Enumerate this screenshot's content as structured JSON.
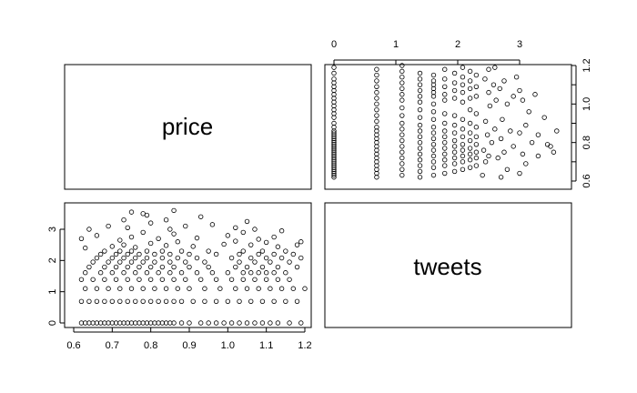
{
  "chart_data": {
    "type": "scatter",
    "variables": [
      "price",
      "tweets"
    ],
    "price_ticks": [
      0.6,
      0.7,
      0.8,
      0.9,
      1.0,
      1.1,
      1.2
    ],
    "price_tick_labels": [
      "0.6",
      "0.7",
      "0.8",
      "0.9",
      "1.0",
      "1.1",
      "1.2"
    ],
    "price_range": [
      0.6,
      1.2
    ],
    "tweets_ticks": [
      0,
      1,
      2,
      3
    ],
    "tweets_tick_labels": [
      "0",
      "1",
      "2",
      "3"
    ],
    "tweets_range": [
      0,
      3.7
    ],
    "tweets_levels": [
      0,
      0.69,
      1.1,
      1.39,
      1.61,
      1.79,
      1.95,
      2.08,
      2.2,
      2.3
    ],
    "points_note": "",
    "points": [
      [
        0.62,
        0
      ],
      [
        0.63,
        0
      ],
      [
        0.64,
        0
      ],
      [
        0.65,
        0
      ],
      [
        0.66,
        0
      ],
      [
        0.67,
        0
      ],
      [
        0.68,
        0
      ],
      [
        0.69,
        0
      ],
      [
        0.7,
        0
      ],
      [
        0.71,
        0
      ],
      [
        0.72,
        0
      ],
      [
        0.73,
        0
      ],
      [
        0.74,
        0
      ],
      [
        0.75,
        0
      ],
      [
        0.76,
        0
      ],
      [
        0.77,
        0
      ],
      [
        0.78,
        0
      ],
      [
        0.79,
        0
      ],
      [
        0.8,
        0
      ],
      [
        0.81,
        0
      ],
      [
        0.82,
        0
      ],
      [
        0.83,
        0
      ],
      [
        0.84,
        0
      ],
      [
        0.85,
        0
      ],
      [
        0.86,
        0
      ],
      [
        0.88,
        0
      ],
      [
        0.9,
        0
      ],
      [
        0.93,
        0
      ],
      [
        0.95,
        0
      ],
      [
        0.97,
        0
      ],
      [
        0.99,
        0
      ],
      [
        1.01,
        0
      ],
      [
        1.03,
        0
      ],
      [
        1.05,
        0
      ],
      [
        1.07,
        0
      ],
      [
        1.09,
        0
      ],
      [
        1.11,
        0
      ],
      [
        1.13,
        0
      ],
      [
        1.16,
        0
      ],
      [
        1.19,
        0
      ],
      [
        0.62,
        0.69
      ],
      [
        0.64,
        0.69
      ],
      [
        0.66,
        0.69
      ],
      [
        0.68,
        0.69
      ],
      [
        0.7,
        0.69
      ],
      [
        0.72,
        0.69
      ],
      [
        0.74,
        0.69
      ],
      [
        0.76,
        0.69
      ],
      [
        0.78,
        0.69
      ],
      [
        0.8,
        0.69
      ],
      [
        0.82,
        0.69
      ],
      [
        0.84,
        0.69
      ],
      [
        0.86,
        0.69
      ],
      [
        0.88,
        0.69
      ],
      [
        0.91,
        0.69
      ],
      [
        0.94,
        0.69
      ],
      [
        0.97,
        0.69
      ],
      [
        1.0,
        0.69
      ],
      [
        1.03,
        0.69
      ],
      [
        1.06,
        0.69
      ],
      [
        1.09,
        0.69
      ],
      [
        1.12,
        0.69
      ],
      [
        1.15,
        0.69
      ],
      [
        1.18,
        0.69
      ],
      [
        0.63,
        1.1
      ],
      [
        0.66,
        1.1
      ],
      [
        0.69,
        1.1
      ],
      [
        0.72,
        1.1
      ],
      [
        0.75,
        1.1
      ],
      [
        0.78,
        1.1
      ],
      [
        0.81,
        1.1
      ],
      [
        0.84,
        1.1
      ],
      [
        0.87,
        1.1
      ],
      [
        0.9,
        1.1
      ],
      [
        0.94,
        1.1
      ],
      [
        0.98,
        1.1
      ],
      [
        1.02,
        1.1
      ],
      [
        1.05,
        1.1
      ],
      [
        1.08,
        1.1
      ],
      [
        1.11,
        1.1
      ],
      [
        1.14,
        1.1
      ],
      [
        1.17,
        1.1
      ],
      [
        1.2,
        1.1
      ],
      [
        0.62,
        1.39
      ],
      [
        0.65,
        1.39
      ],
      [
        0.68,
        1.39
      ],
      [
        0.71,
        1.39
      ],
      [
        0.74,
        1.39
      ],
      [
        0.77,
        1.39
      ],
      [
        0.8,
        1.39
      ],
      [
        0.83,
        1.39
      ],
      [
        0.86,
        1.39
      ],
      [
        0.89,
        1.39
      ],
      [
        0.93,
        1.39
      ],
      [
        0.97,
        1.39
      ],
      [
        1.01,
        1.39
      ],
      [
        1.04,
        1.39
      ],
      [
        1.07,
        1.39
      ],
      [
        1.1,
        1.39
      ],
      [
        1.13,
        1.39
      ],
      [
        1.16,
        1.39
      ],
      [
        0.63,
        1.61
      ],
      [
        0.67,
        1.61
      ],
      [
        0.7,
        1.61
      ],
      [
        0.73,
        1.61
      ],
      [
        0.76,
        1.61
      ],
      [
        0.79,
        1.61
      ],
      [
        0.82,
        1.61
      ],
      [
        0.85,
        1.61
      ],
      [
        0.88,
        1.61
      ],
      [
        0.92,
        1.61
      ],
      [
        0.96,
        1.61
      ],
      [
        1.0,
        1.61
      ],
      [
        1.04,
        1.61
      ],
      [
        1.06,
        1.61
      ],
      [
        1.08,
        1.61
      ],
      [
        1.1,
        1.61
      ],
      [
        1.12,
        1.61
      ],
      [
        1.15,
        1.61
      ],
      [
        0.64,
        1.79
      ],
      [
        0.68,
        1.79
      ],
      [
        0.71,
        1.79
      ],
      [
        0.74,
        1.79
      ],
      [
        0.77,
        1.79
      ],
      [
        0.8,
        1.79
      ],
      [
        0.83,
        1.79
      ],
      [
        0.86,
        1.79
      ],
      [
        0.9,
        1.79
      ],
      [
        0.95,
        1.79
      ],
      [
        1.02,
        1.79
      ],
      [
        1.05,
        1.79
      ],
      [
        1.09,
        1.79
      ],
      [
        1.13,
        1.79
      ],
      [
        1.18,
        1.79
      ],
      [
        0.65,
        1.95
      ],
      [
        0.69,
        1.95
      ],
      [
        0.72,
        1.95
      ],
      [
        0.75,
        1.95
      ],
      [
        0.78,
        1.95
      ],
      [
        0.81,
        1.95
      ],
      [
        0.85,
        1.95
      ],
      [
        0.89,
        1.95
      ],
      [
        0.94,
        1.95
      ],
      [
        1.03,
        1.95
      ],
      [
        1.07,
        1.95
      ],
      [
        1.11,
        1.95
      ],
      [
        1.16,
        1.95
      ],
      [
        0.66,
        2.08
      ],
      [
        0.7,
        2.08
      ],
      [
        0.73,
        2.08
      ],
      [
        0.76,
        2.08
      ],
      [
        0.79,
        2.08
      ],
      [
        0.83,
        2.08
      ],
      [
        0.87,
        2.08
      ],
      [
        0.92,
        2.08
      ],
      [
        1.01,
        2.08
      ],
      [
        1.06,
        2.08
      ],
      [
        1.1,
        2.08
      ],
      [
        1.14,
        2.08
      ],
      [
        1.19,
        2.08
      ],
      [
        0.67,
        2.2
      ],
      [
        0.71,
        2.2
      ],
      [
        0.74,
        2.2
      ],
      [
        0.77,
        2.2
      ],
      [
        0.81,
        2.2
      ],
      [
        0.85,
        2.2
      ],
      [
        0.9,
        2.2
      ],
      [
        0.97,
        2.2
      ],
      [
        1.03,
        2.2
      ],
      [
        1.08,
        2.2
      ],
      [
        1.12,
        2.2
      ],
      [
        1.17,
        2.2
      ],
      [
        0.68,
        2.3
      ],
      [
        0.72,
        2.3
      ],
      [
        0.75,
        2.3
      ],
      [
        0.79,
        2.3
      ],
      [
        0.83,
        2.3
      ],
      [
        0.88,
        2.3
      ],
      [
        0.95,
        2.3
      ],
      [
        1.04,
        2.3
      ],
      [
        1.09,
        2.3
      ],
      [
        1.15,
        2.3
      ],
      [
        0.63,
        2.4
      ],
      [
        0.7,
        2.45
      ],
      [
        0.73,
        2.5
      ],
      [
        0.76,
        2.42
      ],
      [
        0.8,
        2.55
      ],
      [
        0.84,
        2.48
      ],
      [
        0.87,
        2.6
      ],
      [
        0.91,
        2.45
      ],
      [
        0.99,
        2.52
      ],
      [
        1.02,
        2.62
      ],
      [
        1.06,
        2.5
      ],
      [
        1.1,
        2.58
      ],
      [
        1.13,
        2.44
      ],
      [
        1.18,
        2.5
      ],
      [
        0.62,
        2.7
      ],
      [
        0.66,
        2.8
      ],
      [
        0.72,
        2.65
      ],
      [
        0.75,
        2.75
      ],
      [
        0.78,
        2.9
      ],
      [
        0.82,
        2.7
      ],
      [
        0.86,
        2.85
      ],
      [
        0.92,
        2.72
      ],
      [
        1.0,
        2.8
      ],
      [
        1.04,
        2.9
      ],
      [
        1.08,
        2.68
      ],
      [
        1.12,
        2.75
      ],
      [
        1.19,
        2.6
      ],
      [
        0.64,
        3.0
      ],
      [
        0.69,
        3.1
      ],
      [
        0.74,
        3.05
      ],
      [
        0.8,
        3.2
      ],
      [
        0.85,
        3.0
      ],
      [
        0.89,
        3.1
      ],
      [
        0.96,
        3.15
      ],
      [
        1.02,
        3.05
      ],
      [
        1.07,
        3.0
      ],
      [
        1.14,
        2.95
      ],
      [
        0.73,
        3.3
      ],
      [
        0.79,
        3.45
      ],
      [
        0.84,
        3.3
      ],
      [
        0.93,
        3.4
      ],
      [
        1.05,
        3.25
      ],
      [
        0.75,
        3.55
      ],
      [
        0.86,
        3.6
      ],
      [
        0.78,
        3.5
      ]
    ]
  },
  "panels": {
    "top_left_label": "price",
    "bottom_right_label": "tweets"
  }
}
